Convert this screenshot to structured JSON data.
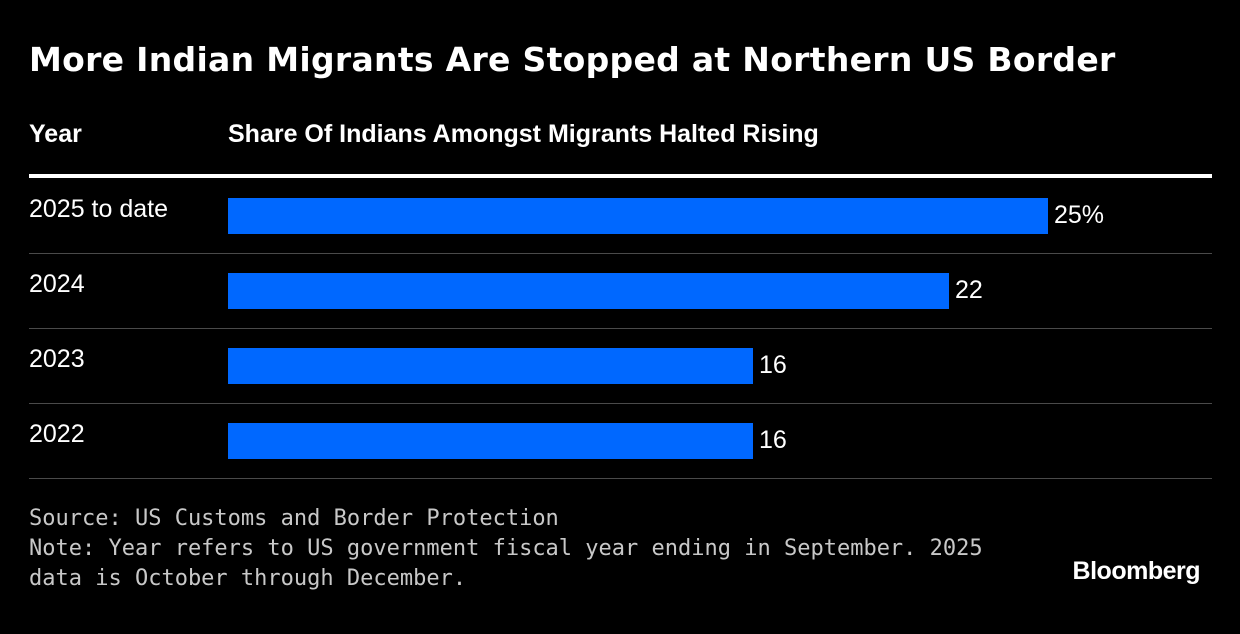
{
  "title": "More Indian Migrants Are Stopped at Northern US Border",
  "columns": {
    "year": "Year",
    "share": "Share Of Indians Amongst Migrants Halted Rising"
  },
  "chart_data": {
    "type": "bar",
    "orientation": "horizontal",
    "categories": [
      "2025 to date",
      "2024",
      "2023",
      "2022"
    ],
    "values": [
      25,
      22,
      16,
      16
    ],
    "value_labels": [
      "25%",
      "22",
      "16",
      "16"
    ],
    "unit": "%",
    "xlim": [
      0,
      34
    ],
    "bar_color": "#0068ff",
    "grid": false,
    "legend": "none"
  },
  "footer": {
    "source": "Source: US Customs and Border Protection",
    "note": "Note: Year refers to US government fiscal year ending in September. 2025 data is October through December."
  },
  "brand": "Bloomberg",
  "colors": {
    "background": "#000000",
    "text": "#ffffff",
    "bar": "#0068ff",
    "rule": "#4a4a4a"
  }
}
